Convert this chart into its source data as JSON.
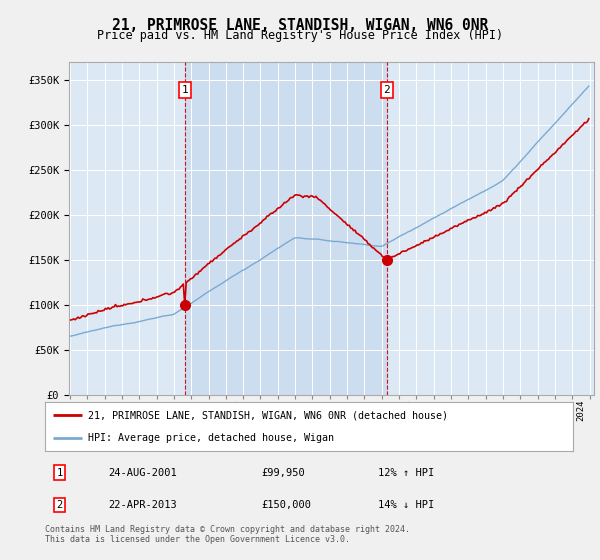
{
  "title": "21, PRIMROSE LANE, STANDISH, WIGAN, WN6 0NR",
  "subtitle": "Price paid vs. HM Land Registry's House Price Index (HPI)",
  "background_color": "#f0f0f0",
  "plot_bg_color": "#dce9f5",
  "shade_color": "#c8d8ee",
  "grid_color": "#ffffff",
  "ylim": [
    0,
    370000
  ],
  "yticks": [
    0,
    50000,
    100000,
    150000,
    200000,
    250000,
    300000,
    350000
  ],
  "ytick_labels": [
    "£0",
    "£50K",
    "£100K",
    "£150K",
    "£200K",
    "£250K",
    "£300K",
    "£350K"
  ],
  "hpi_color": "#7aaad0",
  "price_color": "#cc0000",
  "marker1_price": 99950,
  "marker2_price": 150000,
  "marker1_year": 2001.625,
  "marker2_year": 2013.29,
  "legend_line1": "21, PRIMROSE LANE, STANDISH, WIGAN, WN6 0NR (detached house)",
  "legend_line2": "HPI: Average price, detached house, Wigan",
  "table_row1": [
    "1",
    "24-AUG-2001",
    "£99,950",
    "12% ↑ HPI"
  ],
  "table_row2": [
    "2",
    "22-APR-2013",
    "£150,000",
    "14% ↓ HPI"
  ],
  "footer": "Contains HM Land Registry data © Crown copyright and database right 2024.\nThis data is licensed under the Open Government Licence v3.0.",
  "start_year": 1995,
  "end_year": 2025
}
